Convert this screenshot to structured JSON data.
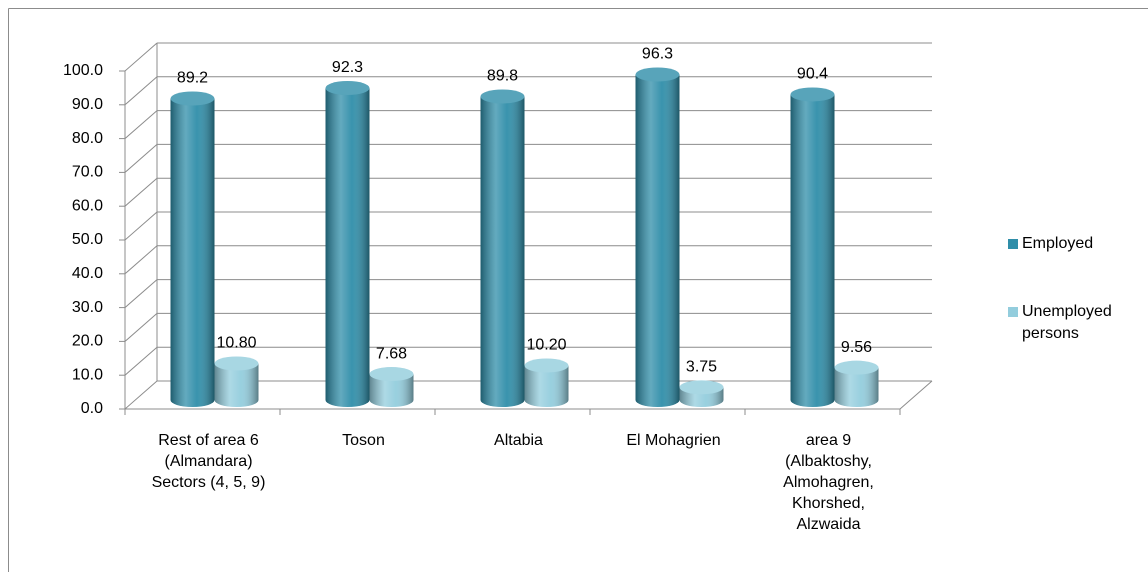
{
  "chart_data": {
    "type": "bar",
    "categories": [
      "Rest of area 6 (Almandara) Sectors (4, 5, 9)",
      "Toson",
      "Altabia",
      "El Mohagrien",
      "area 9 (Albaktoshy, Almohagren, Khorshed, Alzwaida"
    ],
    "series": [
      {
        "name": "Employed",
        "color": "#2f8ea9",
        "values": [
          89.2,
          92.3,
          89.8,
          96.3,
          90.4
        ]
      },
      {
        "name": "Unemployed persons",
        "color": "#93cddd",
        "values": [
          10.8,
          7.68,
          10.2,
          3.75,
          9.56
        ],
        "value_labels": [
          "10.80",
          "7.68",
          "10.20",
          "3.75",
          "9.56"
        ]
      }
    ],
    "ylim": [
      0,
      100
    ],
    "yticks": [
      {
        "value": 0,
        "label": "0.0"
      },
      {
        "value": 10,
        "label": "10.0"
      },
      {
        "value": 20,
        "label": "20.0"
      },
      {
        "value": 30,
        "label": "30.0"
      },
      {
        "value": 40,
        "label": "40.0"
      },
      {
        "value": 50,
        "label": "50.0"
      },
      {
        "value": 60,
        "label": "60.0"
      },
      {
        "value": 70,
        "label": "70.0"
      },
      {
        "value": 80,
        "label": "80.0"
      },
      {
        "value": 90,
        "label": "90.0"
      },
      {
        "value": 100,
        "label": "100.0"
      }
    ],
    "grid": true,
    "legend": "right"
  }
}
